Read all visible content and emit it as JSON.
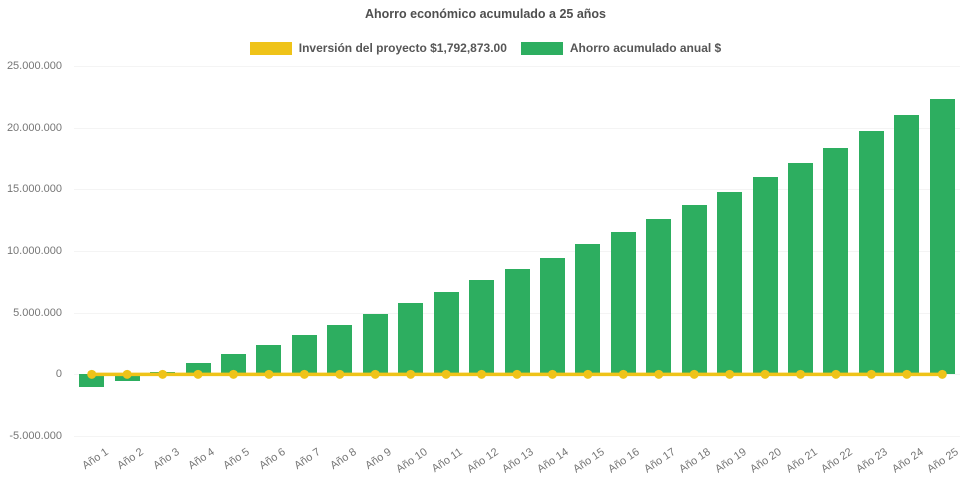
{
  "title": "Ahorro económico acumulado a 25 años",
  "legend": {
    "items": [
      {
        "label": "Inversión del proyecto $1,792,873.00",
        "color": "#EFC319",
        "series_type": "line"
      },
      {
        "label": "Ahorro acumulado anual $",
        "color": "#2DAE60",
        "series_type": "bar"
      }
    ]
  },
  "yaxis": {
    "ticks": [
      {
        "label": "25.000.000",
        "value": 25000000
      },
      {
        "label": "20.000.000",
        "value": 20000000
      },
      {
        "label": "15.000.000",
        "value": 15000000
      },
      {
        "label": "10.000.000",
        "value": 10000000
      },
      {
        "label": "5.000.000",
        "value": 5000000
      },
      {
        "label": "0",
        "value": 0
      },
      {
        "label": "-5.000.000",
        "value": -5000000
      }
    ]
  },
  "chart_data": {
    "type": "bar",
    "title": "Ahorro económico acumulado a 25 años",
    "categories": [
      "Año 1",
      "Año 2",
      "Año 3",
      "Año 4",
      "Año 5",
      "Año 6",
      "Año 7",
      "Año 8",
      "Año 9",
      "Año 10",
      "Año 11",
      "Año 12",
      "Año 13",
      "Año 14",
      "Año 15",
      "Año 16",
      "Año 17",
      "Año 18",
      "Año 19",
      "Año 20",
      "Año 21",
      "Año 22",
      "Año 23",
      "Año 24",
      "Año 25"
    ],
    "series": [
      {
        "name": "Ahorro acumulado anual $",
        "type": "bar",
        "color": "#2DAE60",
        "values": [
          -1050000,
          -550000,
          200000,
          950000,
          1650000,
          2400000,
          3200000,
          4000000,
          4900000,
          5750000,
          6700000,
          7650000,
          8500000,
          9450000,
          10550000,
          11500000,
          12600000,
          13700000,
          14800000,
          16000000,
          17100000,
          18350000,
          19700000,
          21000000,
          22350000
        ]
      },
      {
        "name": "Inversión del proyecto $1,792,873.00",
        "type": "line",
        "color": "#EFC319",
        "marker": "circle",
        "values": [
          0,
          0,
          0,
          0,
          0,
          0,
          0,
          0,
          0,
          0,
          0,
          0,
          0,
          0,
          0,
          0,
          0,
          0,
          0,
          0,
          0,
          0,
          0,
          0,
          0
        ]
      }
    ],
    "xlabel": "",
    "ylabel": "",
    "ylim": [
      -5000000,
      25000000
    ],
    "grid": false,
    "legend_position": "top"
  }
}
